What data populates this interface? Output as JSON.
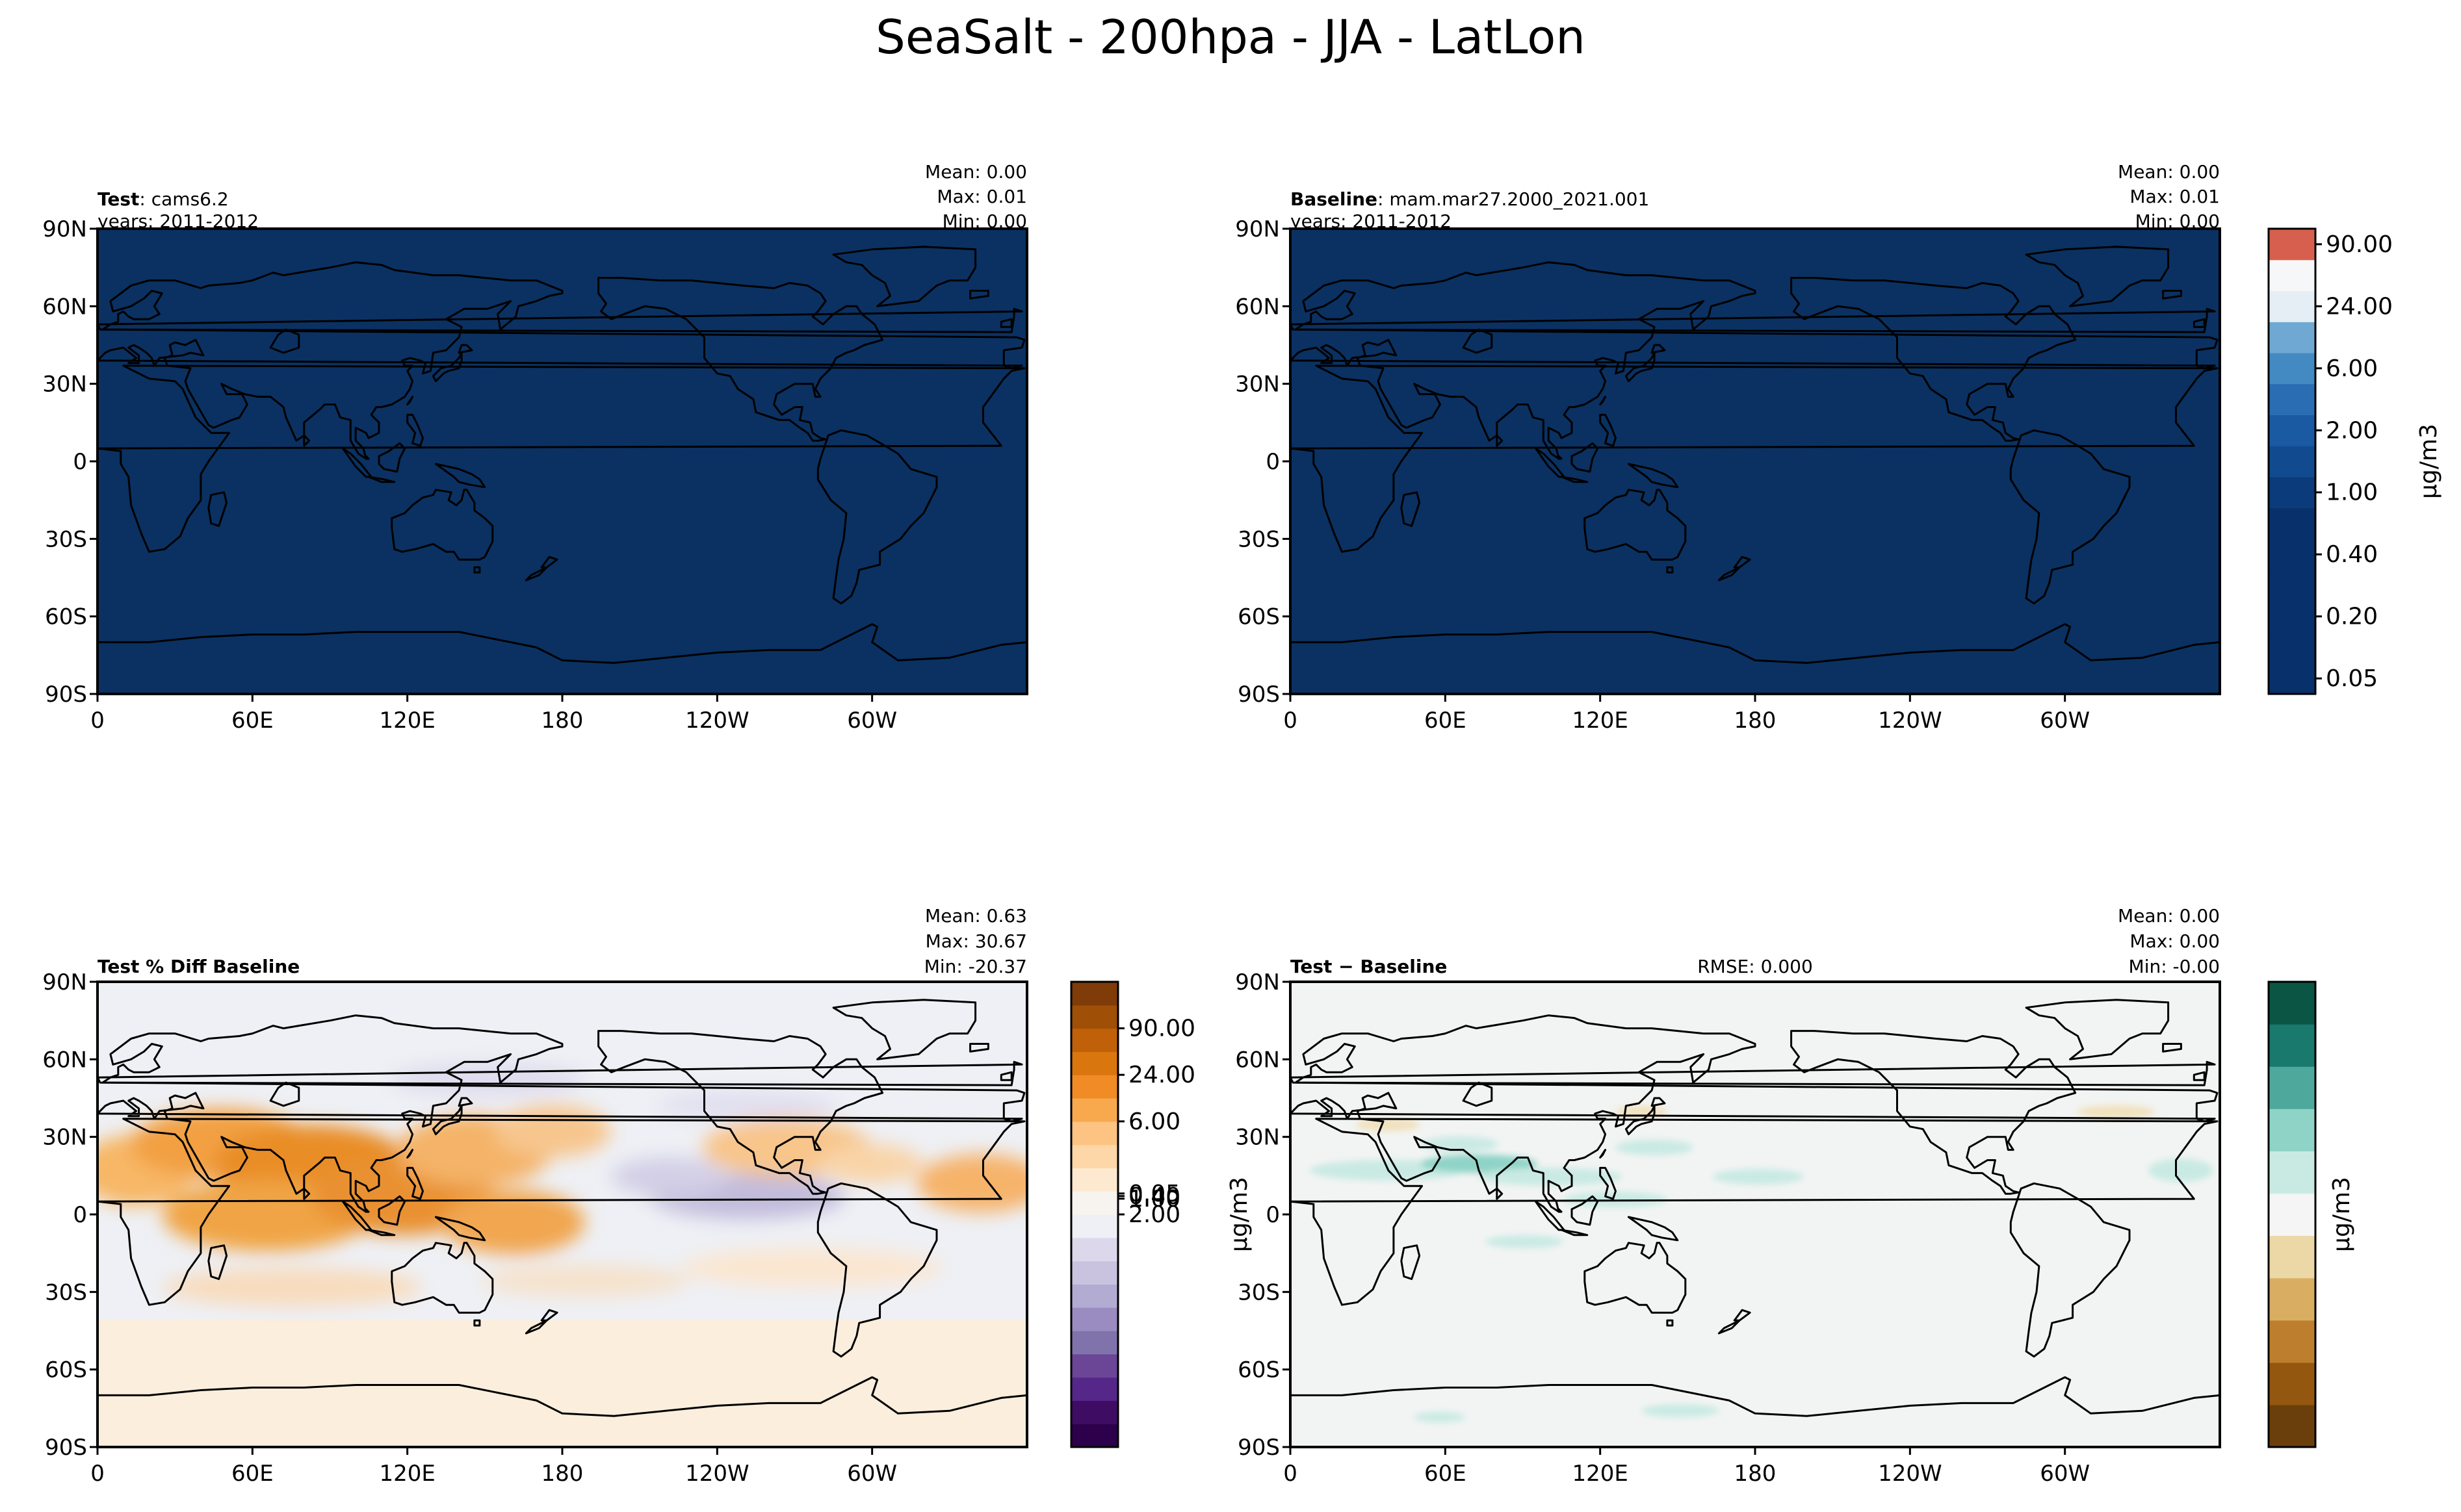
{
  "figure": {
    "title": "SeaSalt - 200hpa - JJA - LatLon"
  },
  "axes": {
    "x_ticks": [
      "0",
      "60E",
      "120E",
      "180",
      "120W",
      "60W"
    ],
    "y_ticks": [
      "90N",
      "60N",
      "30N",
      "0",
      "30S",
      "60S",
      "90S"
    ]
  },
  "units_label": "μg/m3",
  "panels": [
    {
      "id": "test",
      "title_bold": "Test",
      "title_rest": ": cams6.2",
      "years": "years: 2011-2012",
      "rmse": "",
      "stats": [
        "Mean:  0.00",
        "Max:  0.01",
        "Min:  0.00"
      ],
      "field": "uniform",
      "fill_color": "#0a3162"
    },
    {
      "id": "baseline",
      "title_bold": "Baseline",
      "title_rest": ": mam.mar27.2000_2021.001",
      "years": "years: 2011-2012",
      "rmse": "",
      "stats": [
        "Mean:  0.00",
        "Max:  0.01",
        "Min:  0.00"
      ],
      "field": "uniform",
      "fill_color": "#0a3162"
    },
    {
      "id": "pctdiff",
      "title_bold": "Test % Diff Baseline",
      "title_rest": "",
      "years": "",
      "rmse": "",
      "stats": [
        "Mean:  0.63",
        "Max: 30.67",
        "Min: -20.37"
      ],
      "field": "pct",
      "fill_color": "#eef0f5"
    },
    {
      "id": "diff",
      "title_bold": "Test − Baseline",
      "title_rest": "",
      "years": "",
      "rmse": "RMSE: 0.000",
      "stats": [
        "Mean:  0.00",
        "Max:  0.00",
        "Min: -0.00"
      ],
      "field": "diff",
      "fill_color": "#f2f4f3"
    }
  ],
  "colorbars": [
    {
      "id": "main",
      "colors": [
        "#08306b",
        "#08306b",
        "#08306b",
        "#08306b",
        "#08306b",
        "#08306b",
        "#0b3b7a",
        "#114a8f",
        "#1a5aa2",
        "#2a6db2",
        "#4389c2",
        "#6fa9d3",
        "#e6eef5",
        "#f6f7f9",
        "#d6604d"
      ],
      "ticks": [
        "0.05",
        "0.20",
        "0.40",
        "1.00",
        "2.00",
        "6.00",
        "24.00",
        "90.00"
      ],
      "label": "μg/m3"
    },
    {
      "id": "pct",
      "colors": [
        "#2d004b",
        "#3f0c63",
        "#542788",
        "#6b4596",
        "#8073ac",
        "#9a8bc0",
        "#b2abd2",
        "#c9c3df",
        "#dcd7ea",
        "#eef0f5",
        "#f7f4f0",
        "#fde9d0",
        "#fdd7a8",
        "#fcc383",
        "#f8a94e",
        "#f08b25",
        "#d9760d",
        "#c06109",
        "#a04f07",
        "#7f3b08"
      ],
      "ticks": [
        "0.05",
        "0.40",
        "1.00",
        "2.00",
        "6.00",
        "24.00",
        "90.00"
      ],
      "label": "μg/m3"
    },
    {
      "id": "diff",
      "colors": [
        "#6b3f0b",
        "#94570f",
        "#bd7f2e",
        "#d9ae63",
        "#ecd7a6",
        "#f5f5f5",
        "#c9eae3",
        "#8fd3c7",
        "#4ea99c",
        "#18796c",
        "#0a5544"
      ],
      "ticks": [],
      "label": "μg/m3"
    }
  ]
}
